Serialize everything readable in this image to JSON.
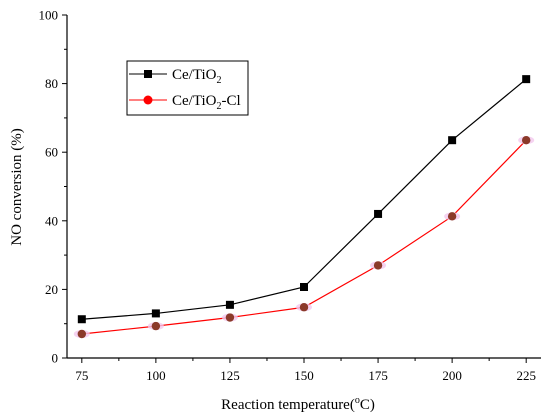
{
  "chart_data": {
    "type": "line",
    "title": "",
    "xlabel": "Reaction temperature(",
    "xlabel_unit_sup": "o",
    "xlabel_unit_tail": "C)",
    "ylabel": "NO conversion (%)",
    "x": [
      75,
      100,
      125,
      150,
      175,
      200,
      225
    ],
    "xlim": [
      70,
      230
    ],
    "ylim": [
      0,
      100
    ],
    "xticks": [
      75,
      100,
      125,
      150,
      175,
      200,
      225
    ],
    "yticks": [
      0,
      20,
      40,
      60,
      80,
      100
    ],
    "grid": false,
    "legend_position": "top-left",
    "series": [
      {
        "name": "Ce/TiO",
        "name_sub": "2",
        "name_tail": "",
        "marker": "square",
        "color": "#000000",
        "values": [
          11.3,
          13.0,
          15.5,
          20.7,
          42.0,
          63.5,
          81.3
        ]
      },
      {
        "name": "Ce/TiO",
        "name_sub": "2",
        "name_tail": "-Cl",
        "marker": "circle",
        "color": "#ff0000",
        "marker_fill": "#8b3a2a",
        "values": [
          7.0,
          9.3,
          11.8,
          14.8,
          27.0,
          41.3,
          63.5
        ]
      }
    ]
  }
}
